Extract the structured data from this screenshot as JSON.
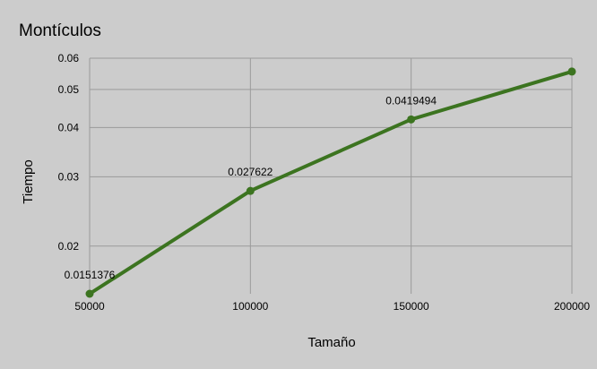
{
  "chart_data": {
    "type": "line",
    "title": "Montículos",
    "xlabel": "Tamaño",
    "ylabel": "Tiempo",
    "x": [
      50000,
      100000,
      150000,
      200000
    ],
    "series": [
      {
        "values": [
          0.0151376,
          0.027622,
          0.0419494,
          0.0555
        ],
        "labels": [
          "0.0151376",
          "0.027622",
          "0.0419494",
          ""
        ]
      }
    ],
    "xlim": [
      50000,
      200000
    ],
    "ylim": [
      0.0151376,
      0.06
    ],
    "yscale": "log",
    "xticks": [
      "50000",
      "100000",
      "150000",
      "200000"
    ],
    "yticks": [
      "0.02",
      "0.03",
      "0.04",
      "0.05",
      "0.06"
    ],
    "ytick_values": [
      0.02,
      0.03,
      0.04,
      0.05,
      0.06
    ],
    "grid": true,
    "legend": "none",
    "colors": {
      "line": "#3c7420",
      "grid": "#9a9a9a",
      "background": "#cccccc",
      "text": "#000000"
    }
  }
}
